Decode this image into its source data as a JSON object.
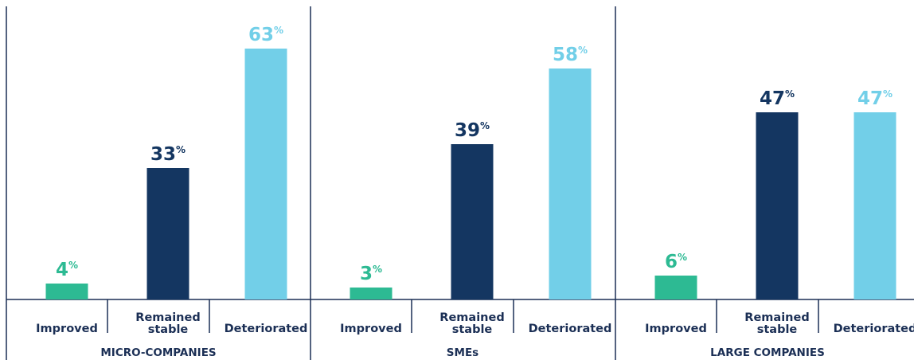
{
  "chart_data": {
    "type": "bar",
    "percent_sign": "%",
    "colors": {
      "Improved": "#2dba93",
      "Remained stable": "#143661",
      "Deteriorated": "#72cfe8",
      "text": "#1b2f55",
      "axis": "#1b2f55"
    },
    "ylim": [
      0,
      70
    ],
    "groups": [
      {
        "name": "MICRO-COMPANIES",
        "categories": [
          "Improved",
          "Remained stable",
          "Deteriorated"
        ],
        "values": [
          4,
          33,
          63
        ]
      },
      {
        "name": "SMEs",
        "categories": [
          "Improved",
          "Remained stable",
          "Deteriorated"
        ],
        "values": [
          3,
          39,
          58
        ]
      },
      {
        "name": "LARGE COMPANIES",
        "categories": [
          "Improved",
          "Remained stable",
          "Deteriorated"
        ],
        "values": [
          6,
          47,
          47
        ]
      }
    ]
  }
}
